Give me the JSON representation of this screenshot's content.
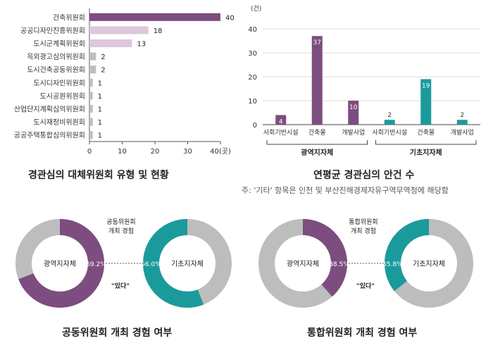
{
  "colors": {
    "purple": "#7d4d7f",
    "light_purple": "#dcc7dc",
    "teal": "#1b9a9c",
    "gray": "#bdbdbd",
    "axis": "#555555"
  },
  "chart_data": [
    {
      "id": "type-hbar",
      "type": "bar",
      "orientation": "horizontal",
      "title": "경관심의 대체위원회 유형 및 현황",
      "categories": [
        "건축위원회",
        "공공디자인진흥위원회",
        "도시군계획위원회",
        "옥외광고심의위원회",
        "도시건축공동위원회",
        "도시디자인위원회",
        "도시공원위원회",
        "산업단지계획심의위원회",
        "도시재정비위원회",
        "공공주택통합심의위원회"
      ],
      "values": [
        40,
        18,
        13,
        2,
        2,
        1,
        1,
        1,
        1,
        1
      ],
      "color_keys": [
        "purple",
        "light_purple",
        "light_purple",
        "gray",
        "gray",
        "gray",
        "gray",
        "gray",
        "gray",
        "gray"
      ],
      "xlim": [
        0,
        40
      ],
      "xticks": [
        "0",
        "10",
        "20",
        "30",
        "40(곳)"
      ]
    },
    {
      "id": "avg-vbar",
      "type": "bar",
      "title": "연평균 경관심의 안건 수",
      "note": "주: '기타' 항목은 인천 및 부산진해경제자유구역무역청에 해당함",
      "unit": "(건)",
      "ylim": [
        0,
        40
      ],
      "yticks": [
        "0",
        "10",
        "20",
        "30",
        "40"
      ],
      "groups": [
        {
          "label": "광역지자체",
          "categories": [
            "사회기반시설",
            "건축물",
            "개발사업"
          ],
          "values": [
            4,
            37,
            10
          ],
          "color_key": "purple"
        },
        {
          "label": "기초지자체",
          "categories": [
            "사회기반시설",
            "건축물",
            "개발사업"
          ],
          "values": [
            2,
            19,
            2
          ],
          "color_key": "teal"
        }
      ]
    },
    {
      "id": "joint-donuts",
      "type": "pie",
      "title": "공동위원회 개최 경험 여부",
      "annotation": "공동위원회\n개최 경험",
      "yes_label": "\"있다\"",
      "slices": [
        {
          "label": "광역지자체",
          "value": 69.2,
          "value_label": "69.2%",
          "color_key": "purple"
        },
        {
          "label": "기초지자체",
          "value": 56.0,
          "value_label": "56.0%",
          "color_key": "teal"
        }
      ]
    },
    {
      "id": "integrated-donuts",
      "type": "pie",
      "title": "통합위원회 개최 경험 여부",
      "annotation": "통합위원회\n개최 경험",
      "yes_label": "\"있다\"",
      "slices": [
        {
          "label": "광역지자체",
          "value": 38.5,
          "value_label": "38.5%",
          "color_key": "purple"
        },
        {
          "label": "기초지자체",
          "value": 35.8,
          "value_label": "35.8%",
          "color_key": "teal"
        }
      ]
    }
  ]
}
